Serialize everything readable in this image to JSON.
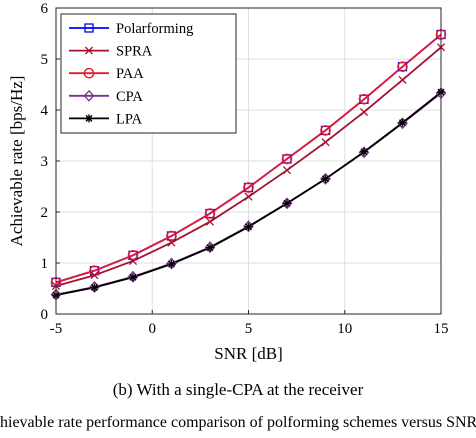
{
  "caption": "(b) With a single-CPA at the receiver",
  "cutoff_text": "hievable rate performance comparison of polforming schemes versus SNR",
  "chart_data": {
    "type": "line",
    "xlabel": "SNR [dB]",
    "ylabel": "Achievable rate [bps/Hz]",
    "xlim": [
      -5,
      15
    ],
    "ylim": [
      0,
      6
    ],
    "xticks": [
      -5,
      0,
      5,
      10,
      15
    ],
    "yticks": [
      0,
      1,
      2,
      3,
      4,
      5,
      6
    ],
    "grid": true,
    "legend_position": "top-left",
    "x": [
      -5,
      -3,
      -1,
      1,
      3,
      5,
      7,
      9,
      11,
      13,
      15
    ],
    "series": [
      {
        "name": "Polarforming",
        "color": "#0000ff",
        "marker": "square",
        "values": [
          0.62,
          0.85,
          1.15,
          1.53,
          1.97,
          2.48,
          3.04,
          3.6,
          4.21,
          4.85,
          5.48
        ]
      },
      {
        "name": "SPRA",
        "color": "#a2142f",
        "marker": "x",
        "values": [
          0.55,
          0.76,
          1.04,
          1.4,
          1.81,
          2.3,
          2.82,
          3.37,
          3.96,
          4.59,
          5.23
        ]
      },
      {
        "name": "PAA",
        "color": "#e8192c",
        "marker": "circle",
        "values": [
          0.62,
          0.85,
          1.15,
          1.53,
          1.97,
          2.48,
          3.04,
          3.6,
          4.21,
          4.85,
          5.48
        ]
      },
      {
        "name": "CPA",
        "color": "#7e2f8e",
        "marker": "diamond",
        "values": [
          0.38,
          0.53,
          0.73,
          0.99,
          1.31,
          1.72,
          2.17,
          2.65,
          3.17,
          3.74,
          4.33
        ]
      },
      {
        "name": "LPA",
        "color": "#000000",
        "marker": "star",
        "values": [
          0.37,
          0.52,
          0.72,
          0.98,
          1.3,
          1.71,
          2.17,
          2.65,
          3.18,
          3.75,
          4.35
        ]
      }
    ]
  }
}
